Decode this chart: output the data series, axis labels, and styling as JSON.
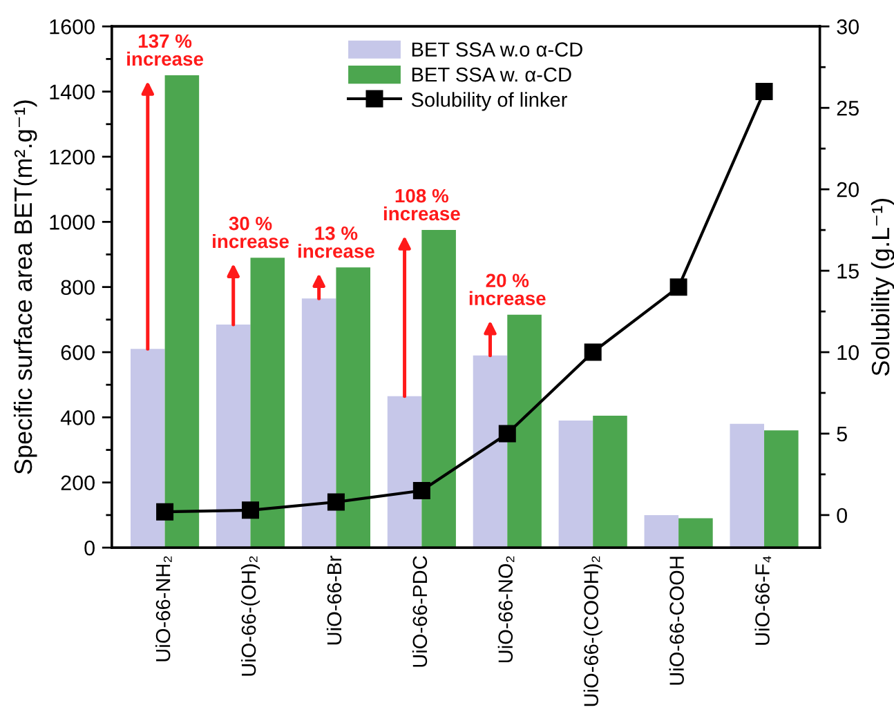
{
  "chart_data": {
    "type": "bar",
    "categories": [
      "UiO-66-NH₂",
      "UiO-66-(OH)₂",
      "UiO-66-Br",
      "UiO-66-PDC",
      "UiO-66-NO₂",
      "UiO-66-(COOH)₂",
      "UiO-66-COOH",
      "UiO-66-F₄"
    ],
    "series": [
      {
        "name": "BET SSA w.o α-CD",
        "color": "#c6c7e9",
        "values": [
          610,
          685,
          765,
          465,
          590,
          390,
          100,
          380
        ]
      },
      {
        "name": "BET SSA w. α-CD",
        "color": "#4ca64f",
        "values": [
          1450,
          890,
          860,
          975,
          715,
          405,
          90,
          360
        ]
      },
      {
        "name": "Solubility of linker",
        "type": "line",
        "axis": "y2",
        "color": "#000000",
        "marker": "square",
        "values": [
          0.2,
          0.3,
          0.8,
          1.5,
          5,
          10,
          14,
          26
        ]
      }
    ],
    "ylabel": "Specific surface area BET(m².g⁻¹)",
    "y2label": "Solubility (g.L⁻¹)",
    "ylim": [
      0,
      1600
    ],
    "yticks": [
      0,
      200,
      400,
      600,
      800,
      1000,
      1200,
      1400,
      1600
    ],
    "y2lim": [
      -2,
      30
    ],
    "y2ticks": [
      0,
      5,
      10,
      15,
      20,
      25,
      30
    ],
    "legend": "top",
    "annotations": [
      {
        "text": "137 %\nincrease",
        "x": "UiO-66-NH₂",
        "y": 1450
      },
      {
        "text": "30 %\nincrease",
        "x": "UiO-66-(OH)₂",
        "y": 890
      },
      {
        "text": "13 %\nincrease",
        "x": "UiO-66-Br",
        "y": 860
      },
      {
        "text": "108 %\nincrease",
        "x": "UiO-66-PDC",
        "y": 975
      },
      {
        "text": "20 %\nincrease",
        "x": "UiO-66-NO₂",
        "y": 715
      }
    ]
  }
}
